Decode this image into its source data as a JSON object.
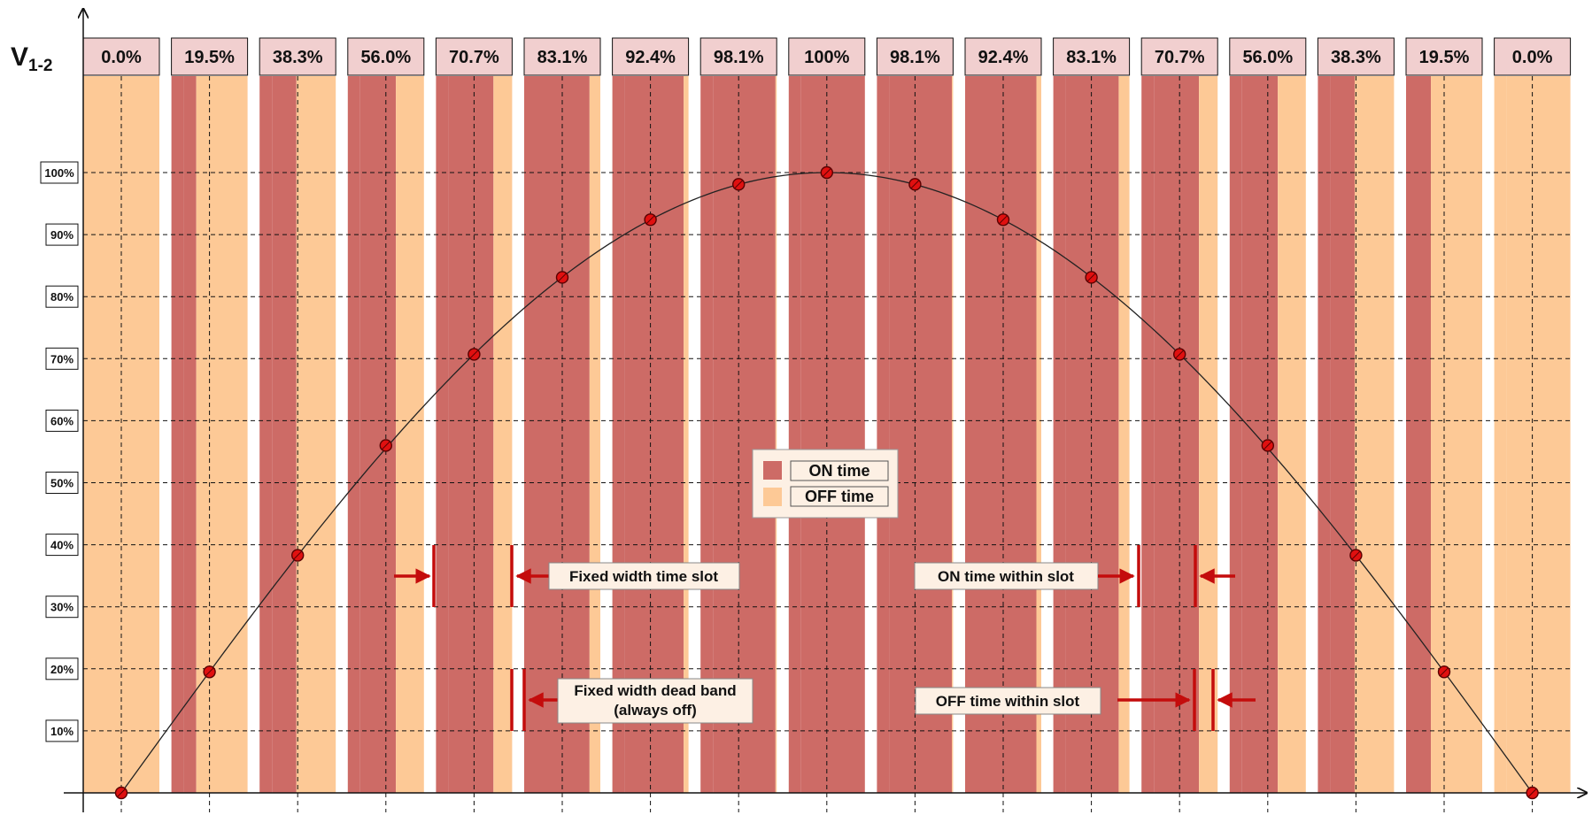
{
  "title_symbol": "V",
  "title_subscript": "1-2",
  "slot_labels": [
    "0.0%",
    "19.5%",
    "38.3%",
    "56.0%",
    "70.7%",
    "83.1%",
    "92.4%",
    "98.1%",
    "100%",
    "98.1%",
    "92.4%",
    "83.1%",
    "70.7%",
    "56.0%",
    "38.3%",
    "19.5%",
    "0.0%"
  ],
  "y_tick_labels": [
    "10%",
    "20%",
    "30%",
    "40%",
    "50%",
    "60%",
    "70%",
    "80%",
    "90%",
    "100%"
  ],
  "legend": {
    "on_label": "ON time",
    "off_label": "OFF time"
  },
  "annotations": {
    "fixed_slot": "Fixed width time slot",
    "on_within": "ON time within slot",
    "dead_band_line1": "Fixed width dead band",
    "dead_band_line2": "(always off)",
    "off_within": "OFF time within slot"
  },
  "colors": {
    "on": "#cd6b66",
    "off": "#fdc996",
    "label_box": "#f1cfcf",
    "annotation_box": "#fdf0e4",
    "arrow": "#c40c0c",
    "marker": "#e01010",
    "grid": "#111111"
  },
  "chart_data": {
    "type": "line",
    "x": [
      0,
      1,
      2,
      3,
      4,
      5,
      6,
      7,
      8,
      9,
      10,
      11,
      12,
      13,
      14,
      15,
      16
    ],
    "values": [
      0.0,
      19.5,
      38.3,
      56.0,
      70.7,
      83.1,
      92.4,
      98.1,
      100,
      98.1,
      92.4,
      83.1,
      70.7,
      56.0,
      38.3,
      19.5,
      0.0
    ],
    "ylim": [
      0,
      100
    ],
    "grid": true
  }
}
